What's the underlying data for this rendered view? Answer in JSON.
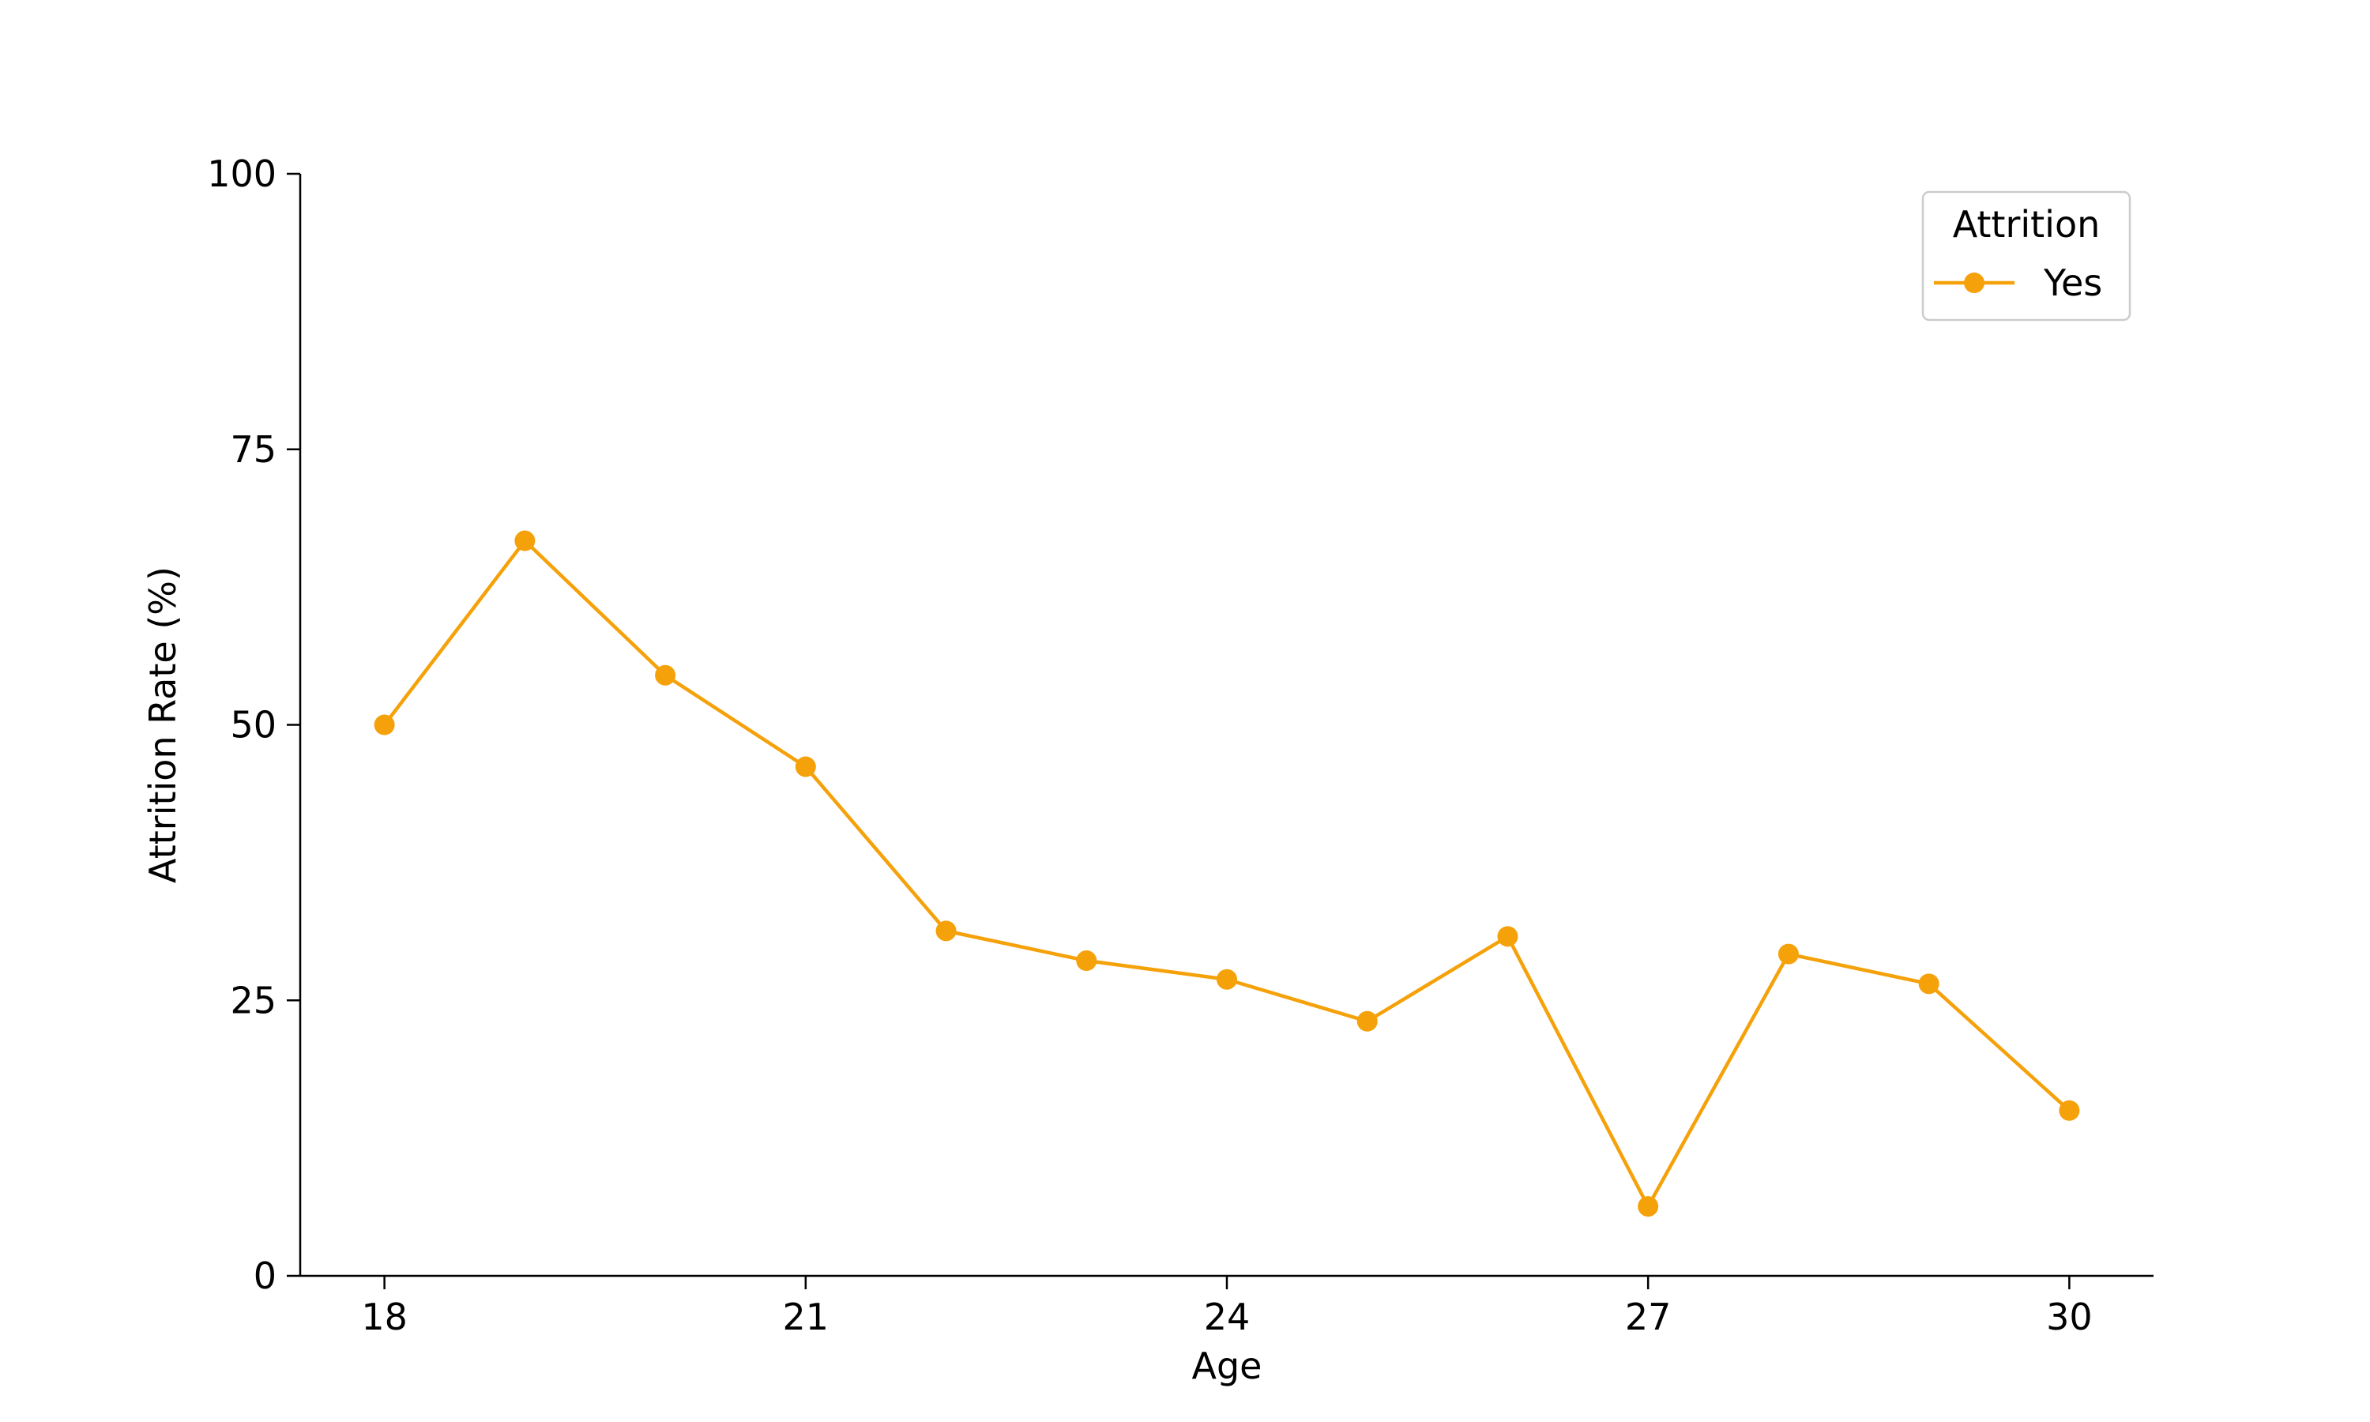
{
  "chart_data": {
    "type": "line",
    "x": [
      18,
      19,
      20,
      21,
      22,
      23,
      24,
      25,
      26,
      27,
      28,
      29,
      30
    ],
    "series": [
      {
        "name": "Yes",
        "values": [
          50.0,
          66.7,
          54.5,
          46.2,
          31.3,
          28.6,
          26.9,
          23.1,
          30.8,
          6.3,
          29.2,
          26.5,
          15.0
        ],
        "color": "#f5a10a"
      }
    ],
    "xlabel": "Age",
    "ylabel": "Attrition Rate (%)",
    "xlim": [
      17.4,
      30.6
    ],
    "ylim": [
      0,
      100
    ],
    "xticks": [
      18,
      21,
      24,
      27,
      30
    ],
    "yticks": [
      0,
      25,
      50,
      75,
      100
    ],
    "legend": {
      "title": "Attrition",
      "position": "top-right"
    },
    "grid": false
  }
}
